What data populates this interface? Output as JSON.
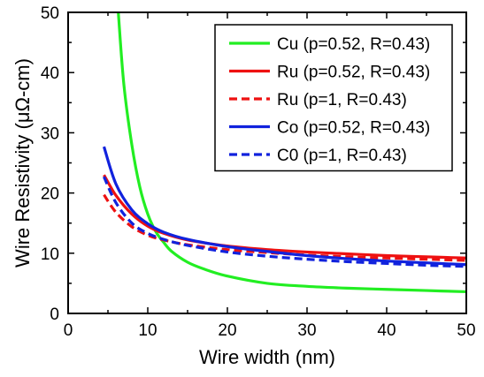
{
  "chart_data": {
    "type": "line",
    "xlabel": "Wire width (nm)",
    "ylabel": "Wire Resistivity (μΩ-cm)",
    "xlim": [
      0,
      50
    ],
    "ylim": [
      0,
      50
    ],
    "xticks": [
      0,
      10,
      20,
      30,
      40,
      50
    ],
    "yticks": [
      0,
      10,
      20,
      30,
      40,
      50
    ],
    "grid": false,
    "legend_position": "top-right",
    "series": [
      {
        "name": "Cu (p=0.52, R=0.43)",
        "color": "#22ee22",
        "dash": "solid",
        "x": [
          6.3,
          7,
          8,
          9,
          10,
          11,
          12,
          13,
          15,
          17,
          20,
          25,
          30,
          35,
          40,
          45,
          50
        ],
        "y": [
          50,
          38,
          28,
          21,
          16.5,
          13.6,
          11.8,
          10.3,
          8.5,
          7.4,
          6.2,
          5.0,
          4.5,
          4.2,
          4.0,
          3.8,
          3.6
        ]
      },
      {
        "name": "Ru (p=0.52, R=0.43)",
        "color": "#ee1111",
        "dash": "solid",
        "x": [
          4.5,
          6,
          8,
          10,
          12,
          15,
          20,
          25,
          30,
          35,
          40,
          45,
          50
        ],
        "y": [
          23,
          19.6,
          16.5,
          14.5,
          13.3,
          12.2,
          11.2,
          10.6,
          10.2,
          9.9,
          9.6,
          9.4,
          9.2
        ]
      },
      {
        "name": "Ru (p=1, R=0.43)",
        "color": "#ee1111",
        "dash": "dashed",
        "x": [
          4.5,
          6,
          8,
          10,
          12,
          15,
          20,
          25,
          30,
          35,
          40,
          45,
          50
        ],
        "y": [
          19.7,
          16.8,
          14.4,
          13.0,
          12.2,
          11.4,
          10.6,
          10.1,
          9.7,
          9.4,
          9.2,
          9.0,
          8.8
        ]
      },
      {
        "name": "Co (p=0.52, R=0.43)",
        "color": "#1122dd",
        "dash": "solid",
        "x": [
          4.5,
          6,
          8,
          10,
          12,
          15,
          20,
          25,
          30,
          35,
          40,
          45,
          50
        ],
        "y": [
          27.7,
          21.5,
          17.2,
          14.9,
          13.5,
          12.3,
          11.1,
          10.3,
          9.6,
          9.1,
          8.7,
          8.4,
          8.1
        ]
      },
      {
        "name": "C0 (p=1, R=0.43)",
        "color": "#1122dd",
        "dash": "dashed",
        "x": [
          4.5,
          6,
          8,
          10,
          12,
          15,
          20,
          25,
          30,
          35,
          40,
          45,
          50
        ],
        "y": [
          22.7,
          18.4,
          15.0,
          13.3,
          12.3,
          11.3,
          10.2,
          9.5,
          9.0,
          8.6,
          8.3,
          8.0,
          7.8
        ]
      }
    ]
  }
}
